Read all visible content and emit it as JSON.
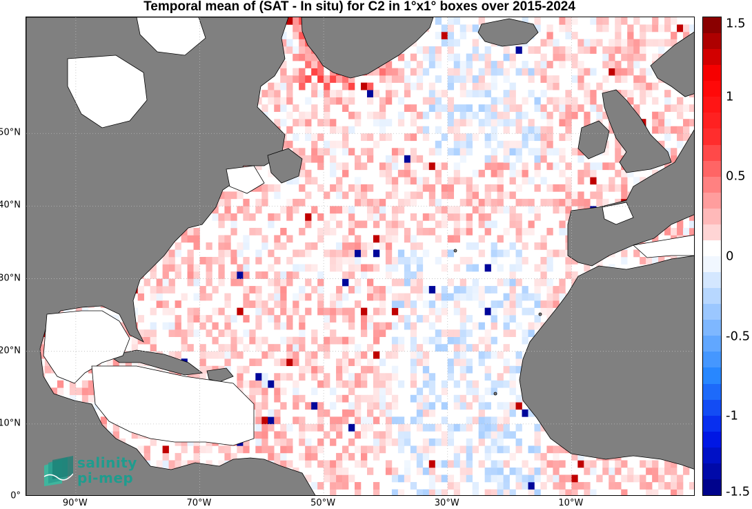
{
  "title": "Temporal mean of (SAT - In situ) for C2 in 1°x1° boxes over 2015-2024",
  "map": {
    "lat_labels": [
      {
        "text": "0°",
        "lat": 0
      },
      {
        "text": "10°N",
        "lat": 10
      },
      {
        "text": "20°N",
        "lat": 20
      },
      {
        "text": "30°N",
        "lat": 30
      },
      {
        "text": "40°N",
        "lat": 40
      },
      {
        "text": "50°N",
        "lat": 50
      }
    ],
    "lon_labels": [
      {
        "text": "90°W",
        "lon": -90
      },
      {
        "text": "70°W",
        "lon": -70
      },
      {
        "text": "50°W",
        "lon": -50
      },
      {
        "text": "30°W",
        "lon": -30
      },
      {
        "text": "10°W",
        "lon": -10
      }
    ],
    "extent": {
      "lon_min": -98,
      "lon_max": 10,
      "lat_min": 0,
      "lat_max": 66
    },
    "land_color": "#808080",
    "grid_style": "dotted"
  },
  "colorbar": {
    "labels": [
      "1.5",
      "1",
      "0.5",
      "0",
      "-0.5",
      "-1",
      "-1.5"
    ],
    "range": [
      -1.5,
      1.5
    ],
    "step": 0.1,
    "colormap": "blue-white-red"
  },
  "logo": {
    "line1": "salinity",
    "line2": "pi-mep"
  }
}
